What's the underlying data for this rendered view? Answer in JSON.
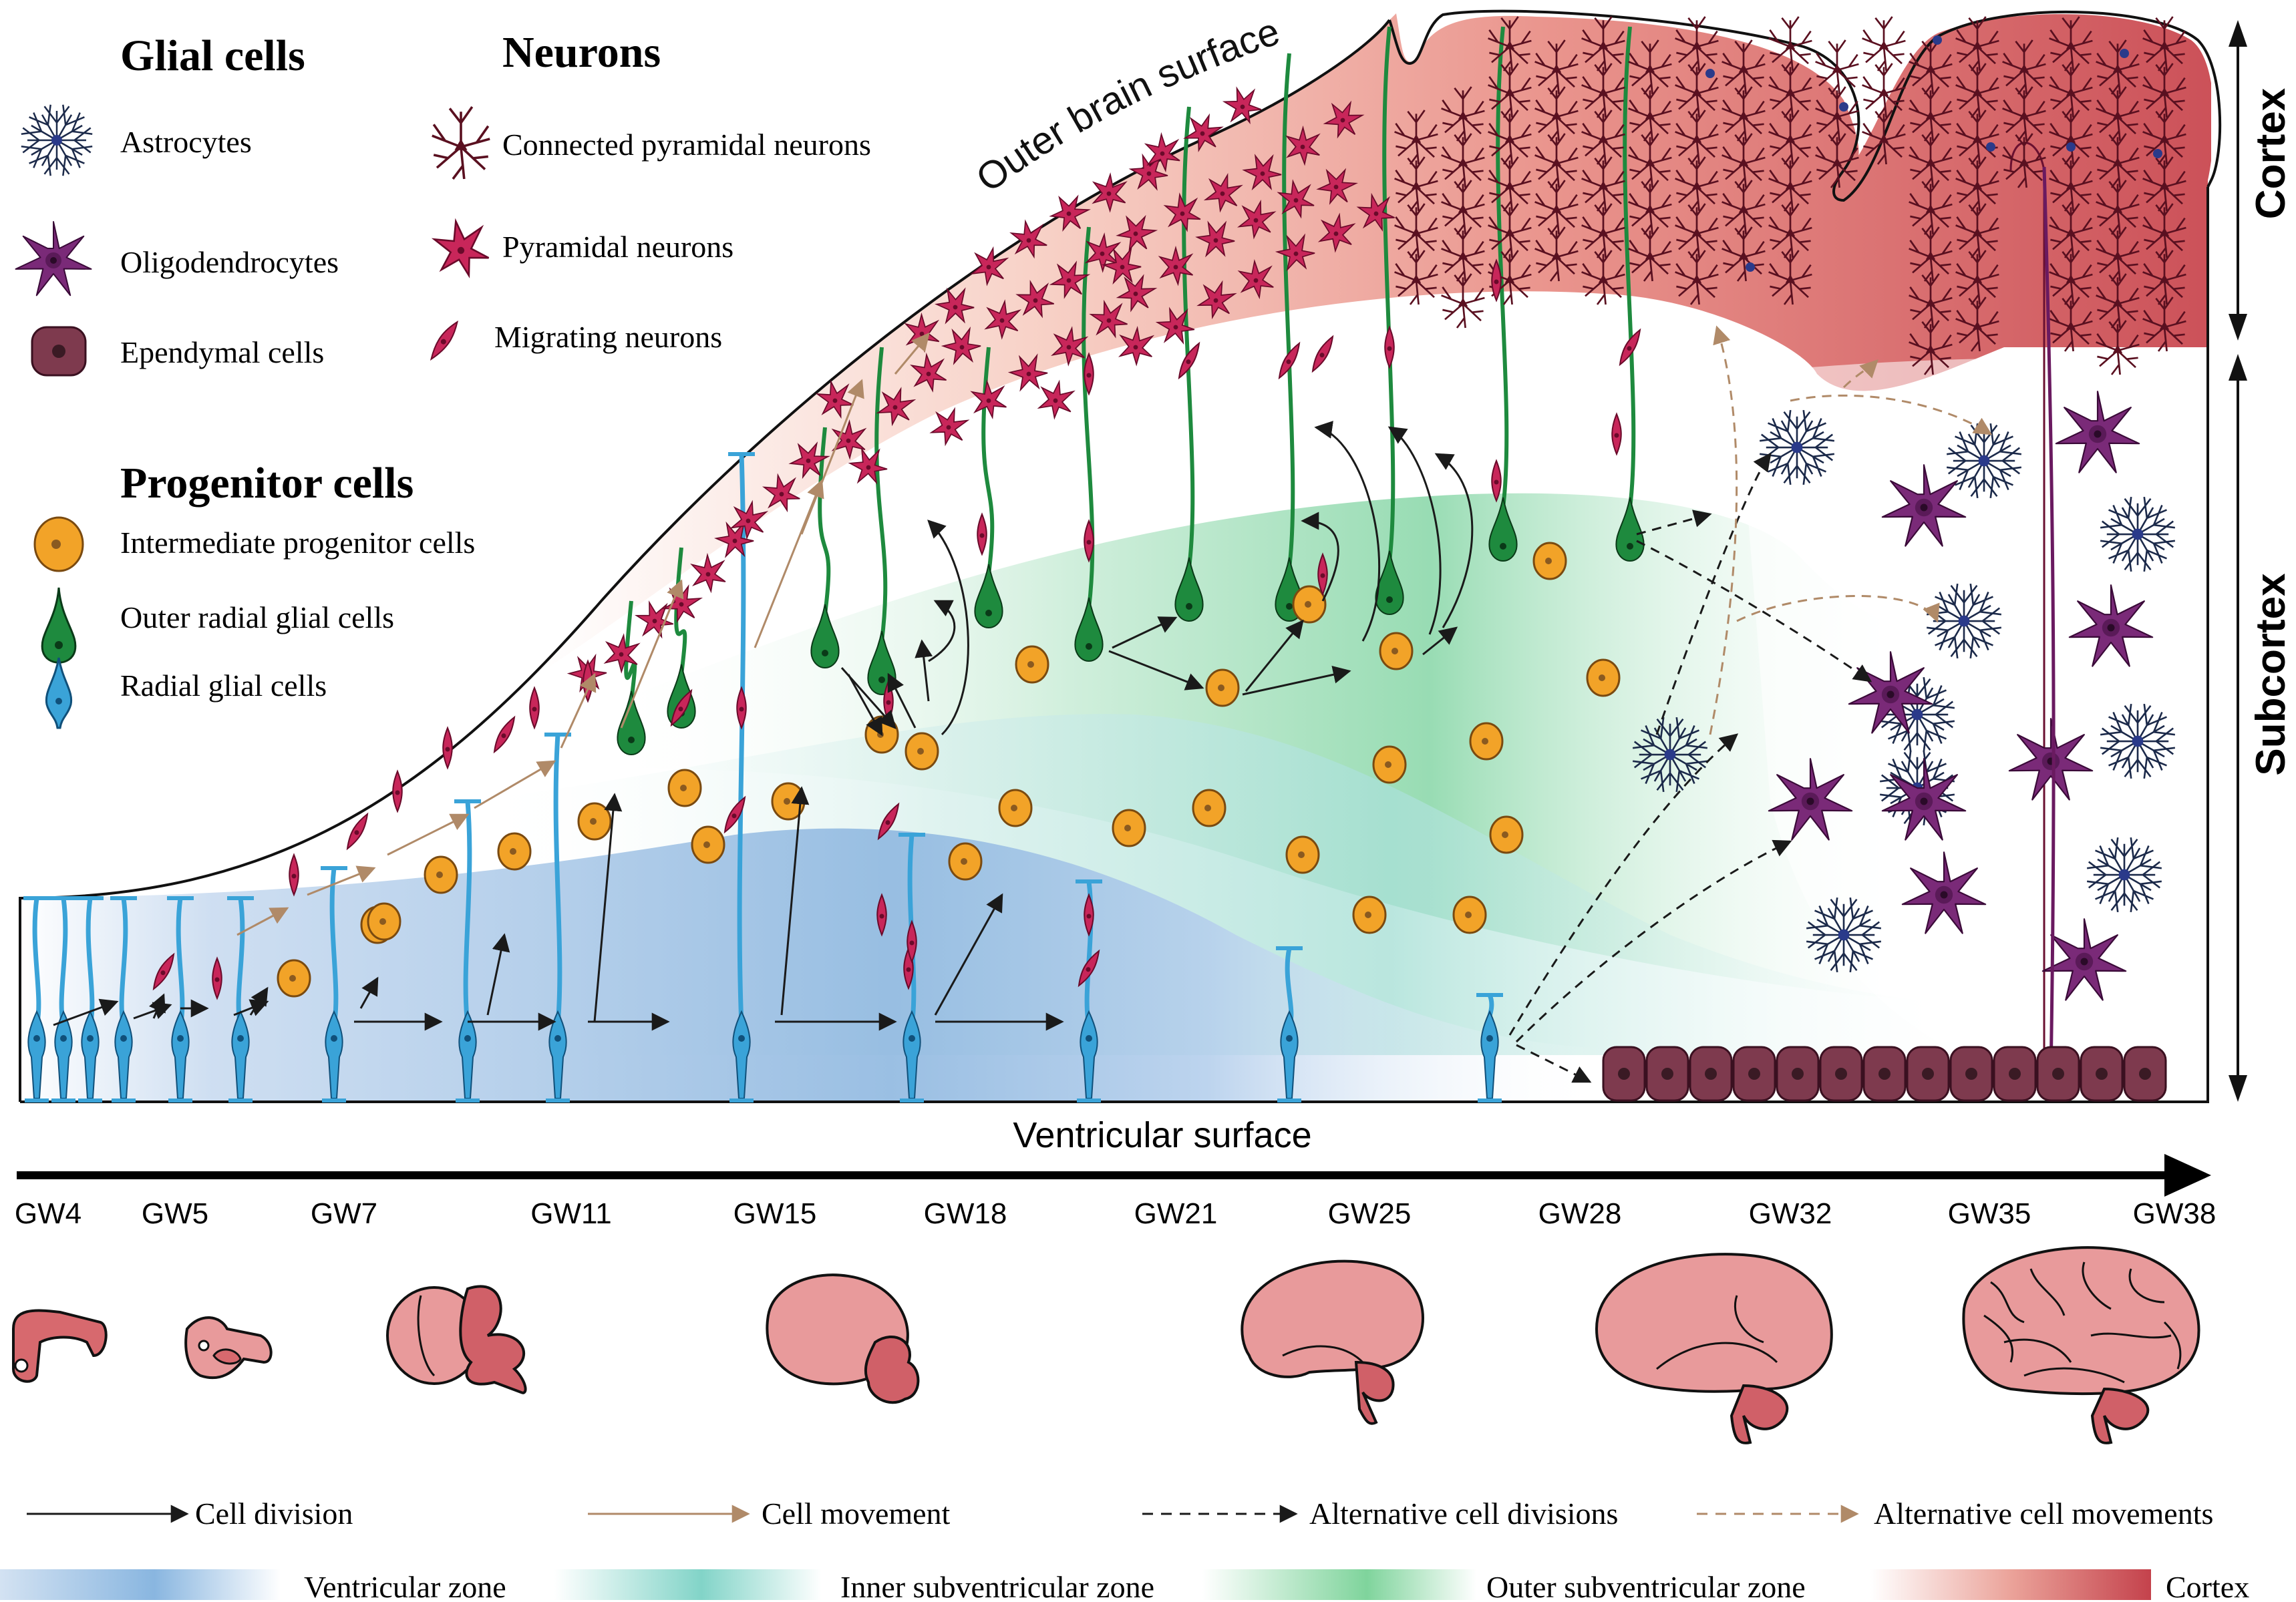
{
  "legend": {
    "glial_title": "Glial cells",
    "neurons_title": "Neurons",
    "progenitor_title": "Progenitor cells",
    "astrocytes": "Astrocytes",
    "oligodendrocytes": "Oligodendrocytes",
    "ependymal": "Ependymal cells",
    "connected_pyramidal": "Connected pyramidal neurons",
    "pyramidal": "Pyramidal neurons",
    "migrating": "Migrating neurons",
    "intermediate": "Intermediate progenitor cells",
    "outer_radial": "Outer radial glial cells",
    "radial": "Radial glial cells"
  },
  "labels": {
    "outer_surface": "Outer brain surface",
    "ventricular_surface": "Ventricular surface",
    "cortex": "Cortex",
    "subcortex": "Subcortex"
  },
  "timeline": [
    "GW4",
    "GW5",
    "GW7",
    "GW11",
    "GW15",
    "GW18",
    "GW21",
    "GW25",
    "GW28",
    "GW32",
    "GW35",
    "GW38"
  ],
  "arrow_legend": {
    "cell_division": "Cell division",
    "cell_movement": "Cell movement",
    "alt_divisions": "Alternative cell divisions",
    "alt_movements": "Alternative cell movements"
  },
  "zone_legend": {
    "ventricular": "Ventricular zone",
    "inner_svz": "Inner subventricular zone",
    "outer_svz": "Outer subventricular zone",
    "cortex": "Cortex"
  },
  "colors": {
    "radial_glia": "#3aa3d8",
    "outer_radial_glia": "#1e8a3e",
    "intermediate": "#f2a328",
    "neuron": "#c8265a",
    "connected": "#5a1020",
    "oligodendrocyte": "#7a2a78",
    "astrocyte": "#1c2a4a",
    "ependymal": "#7e3a4e",
    "cortex": "#cf4a52",
    "ventricular_zone": "#8fb8e0",
    "inner_svz": "#8fd8cc",
    "outer_svz": "#8ad8a6"
  }
}
